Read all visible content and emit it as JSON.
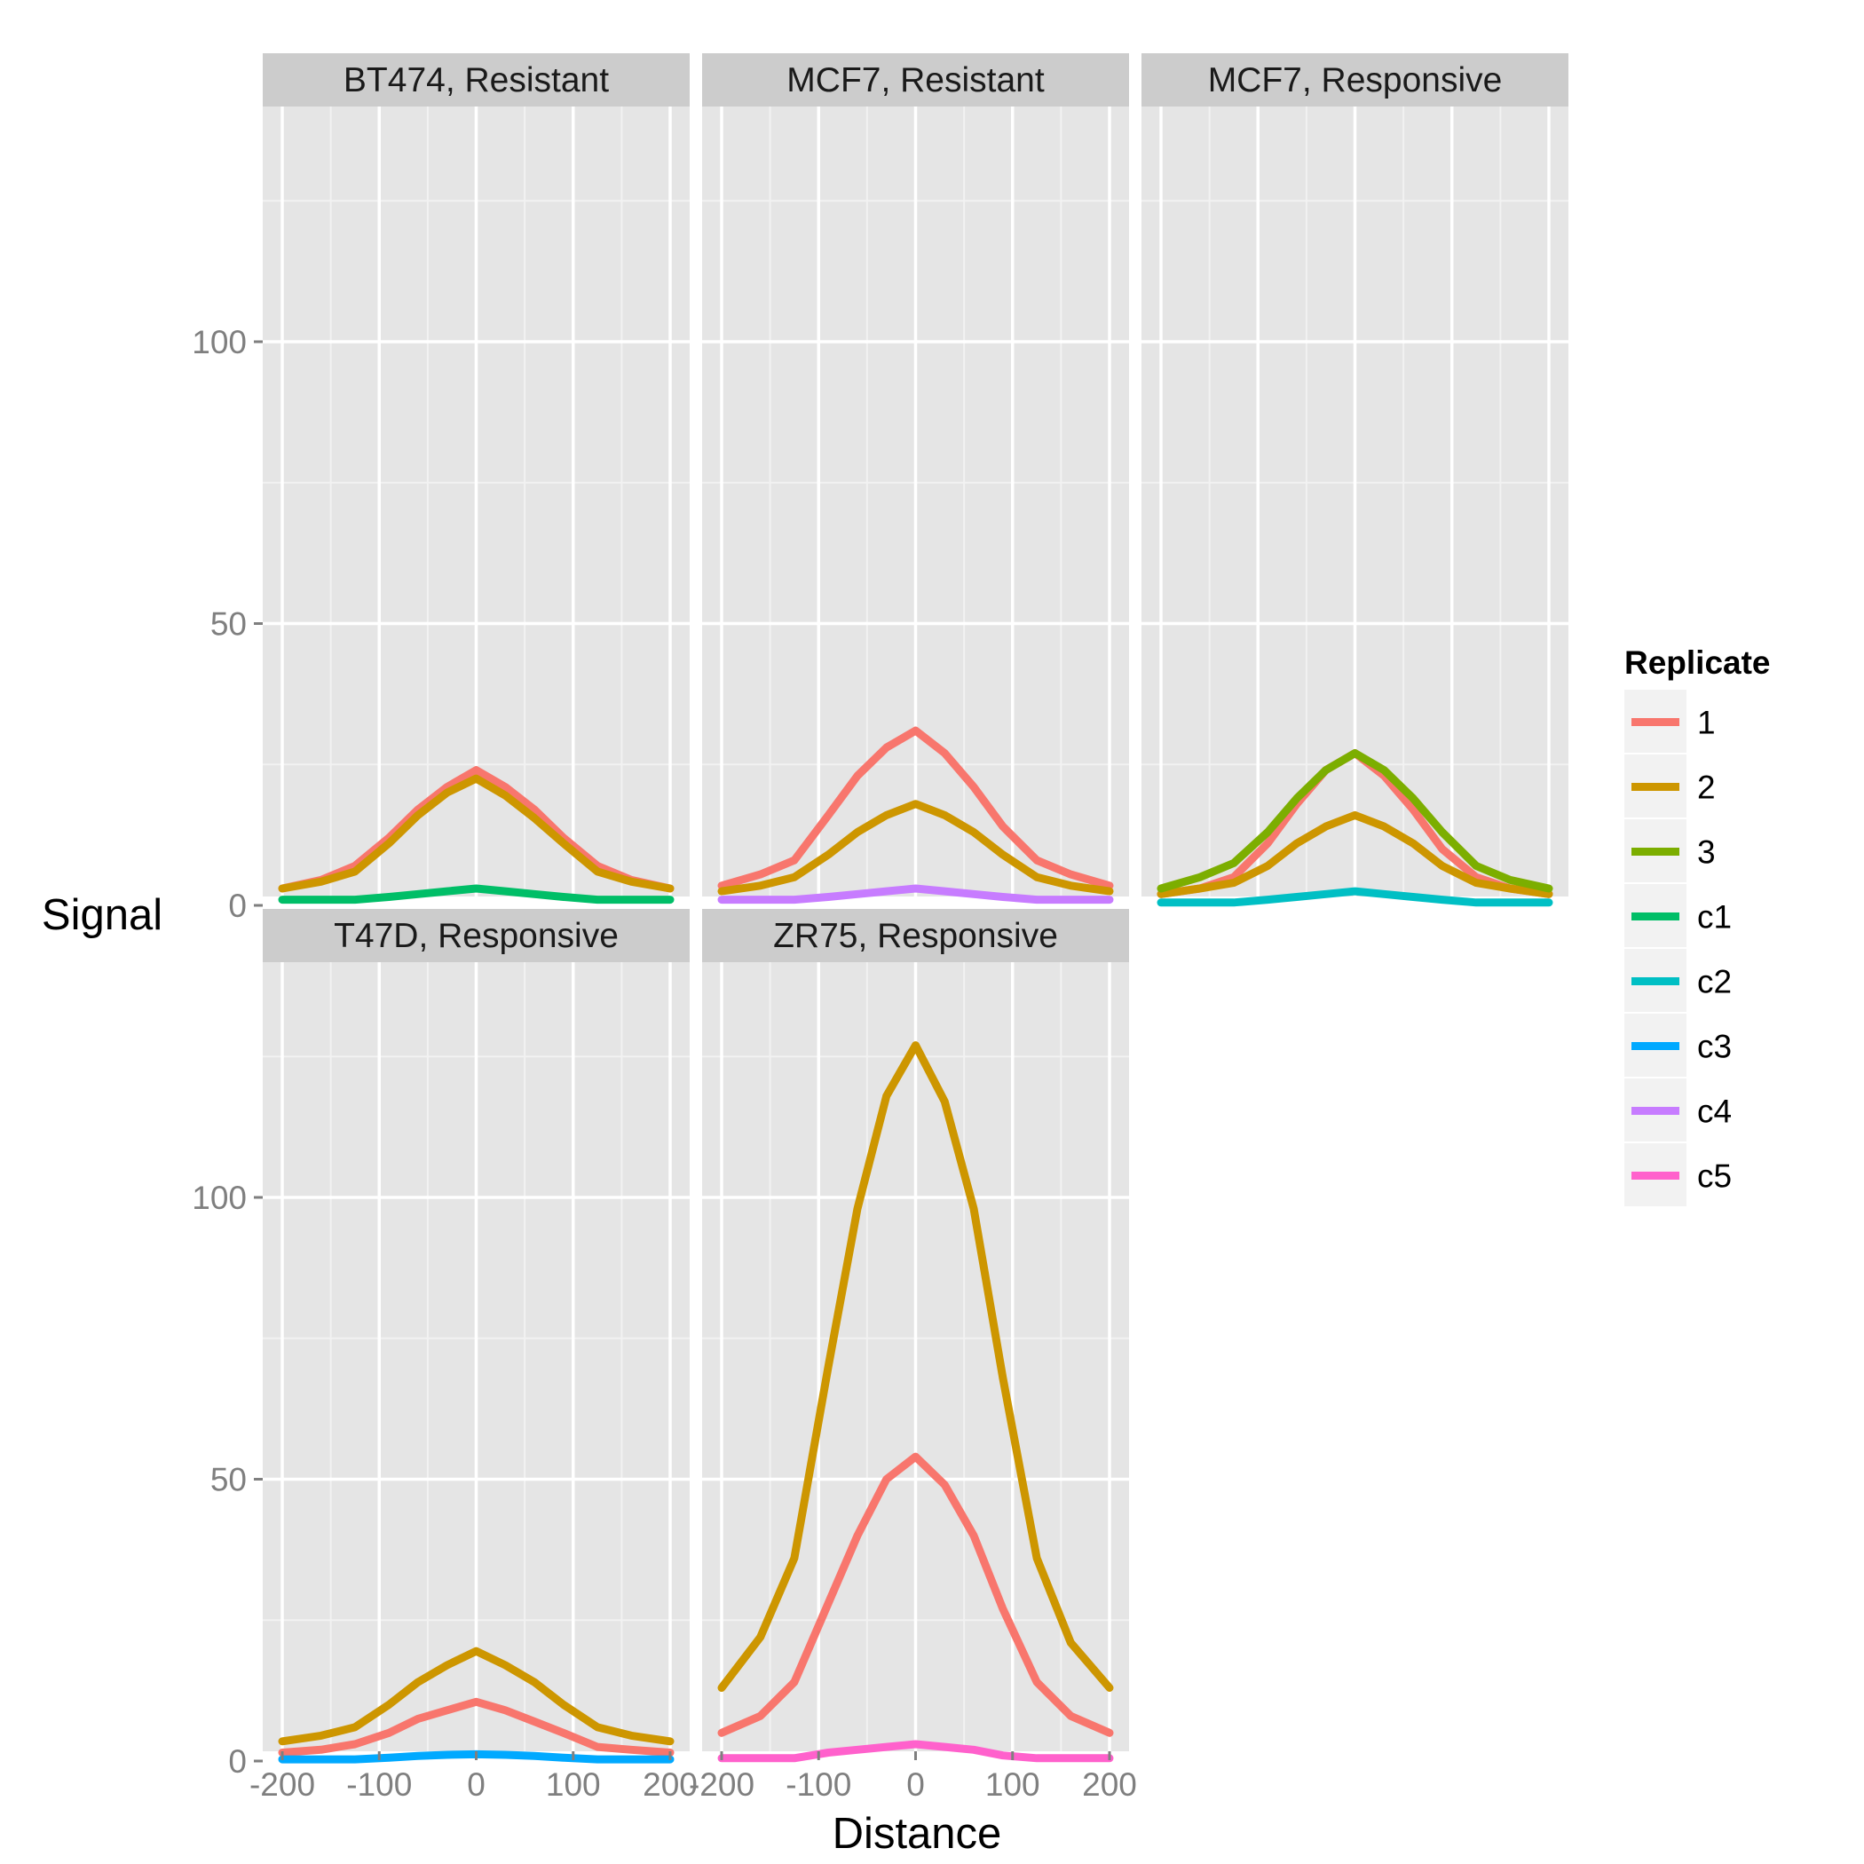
{
  "chart_data": {
    "type": "line",
    "xlabel": "Distance",
    "ylabel": "Signal",
    "xlim": [
      -200,
      200
    ],
    "ylim": [
      0,
      130
    ],
    "x_ticks": [
      -200,
      -100,
      0,
      100,
      200
    ],
    "y_ticks": [
      0,
      50,
      100
    ],
    "grid": true,
    "legend": {
      "title": "Replicate",
      "position": "right",
      "entries": [
        {
          "name": "1",
          "color": "#F8766D"
        },
        {
          "name": "2",
          "color": "#CD9600"
        },
        {
          "name": "3",
          "color": "#7CAE00"
        },
        {
          "name": "c1",
          "color": "#00BE67"
        },
        {
          "name": "c2",
          "color": "#00BFC4"
        },
        {
          "name": "c3",
          "color": "#00A9FF"
        },
        {
          "name": "c4",
          "color": "#C77CFF"
        },
        {
          "name": "c5",
          "color": "#FF61CC"
        }
      ]
    },
    "x": [
      -200,
      -160,
      -125,
      -90,
      -60,
      -30,
      0,
      30,
      60,
      90,
      125,
      160,
      200
    ],
    "panels": [
      {
        "title": "BT474, Resistant",
        "series": [
          {
            "name": "1",
            "values": [
              3,
              4.5,
              7,
              12,
              17,
              21,
              24,
              21,
              17,
              12,
              7,
              4.5,
              3
            ]
          },
          {
            "name": "2",
            "values": [
              3,
              4.2,
              6,
              11,
              16,
              20,
              22.5,
              19.5,
              15.5,
              11,
              6,
              4.2,
              3
            ]
          },
          {
            "name": "c1",
            "values": [
              1,
              1,
              1,
              1.5,
              2,
              2.5,
              3,
              2.5,
              2,
              1.5,
              1,
              1,
              1
            ]
          }
        ]
      },
      {
        "title": "MCF7, Resistant",
        "series": [
          {
            "name": "1",
            "values": [
              3.5,
              5.5,
              8,
              16,
              23,
              28,
              31,
              27,
              21,
              14,
              8,
              5.5,
              3.5
            ]
          },
          {
            "name": "2",
            "values": [
              2.5,
              3.5,
              5,
              9,
              13,
              16,
              18,
              16,
              13,
              9,
              5,
              3.5,
              2.5
            ]
          },
          {
            "name": "c4",
            "values": [
              1,
              1,
              1,
              1.5,
              2,
              2.5,
              3,
              2.5,
              2,
              1.5,
              1,
              1,
              1
            ]
          }
        ]
      },
      {
        "title": "MCF7, Responsive",
        "series": [
          {
            "name": "1",
            "values": [
              2,
              3,
              5,
              11,
              18,
              24,
              27,
              23,
              17,
              10,
              5,
              3,
              2
            ]
          },
          {
            "name": "2",
            "values": [
              2,
              3,
              4,
              7,
              11,
              14,
              16,
              14,
              11,
              7,
              4,
              3,
              2
            ]
          },
          {
            "name": "3",
            "values": [
              3,
              5,
              7.5,
              13,
              19,
              24,
              27,
              24,
              19,
              13,
              7,
              4.5,
              3
            ]
          },
          {
            "name": "c2",
            "values": [
              0.5,
              0.5,
              0.5,
              1,
              1.5,
              2,
              2.5,
              2,
              1.5,
              1,
              0.5,
              0.5,
              0.5
            ]
          }
        ]
      },
      {
        "title": "T47D, Responsive",
        "series": [
          {
            "name": "1",
            "values": [
              1.5,
              2,
              3,
              5,
              7.5,
              9,
              10.5,
              9,
              7,
              5,
              2.5,
              2,
              1.5
            ]
          },
          {
            "name": "2",
            "values": [
              3.5,
              4.5,
              6,
              10,
              14,
              17,
              19.5,
              17,
              14,
              10,
              6,
              4.5,
              3.5
            ]
          },
          {
            "name": "c3",
            "values": [
              0.3,
              0.3,
              0.3,
              0.6,
              0.9,
              1.1,
              1.2,
              1.1,
              0.9,
              0.6,
              0.3,
              0.3,
              0.3
            ]
          }
        ]
      },
      {
        "title": "ZR75, Responsive",
        "series": [
          {
            "name": "1",
            "values": [
              5,
              8,
              14,
              28,
              40,
              50,
              54,
              49,
              40,
              27,
              14,
              8,
              5
            ]
          },
          {
            "name": "2",
            "values": [
              13,
              22,
              36,
              70,
              98,
              118,
              127,
              117,
              98,
              68,
              36,
              21,
              13
            ]
          },
          {
            "name": "c5",
            "values": [
              0.5,
              0.5,
              0.5,
              1.5,
              2,
              2.5,
              3,
              2.5,
              2,
              1,
              0.5,
              0.5,
              0.5
            ]
          }
        ]
      }
    ]
  }
}
